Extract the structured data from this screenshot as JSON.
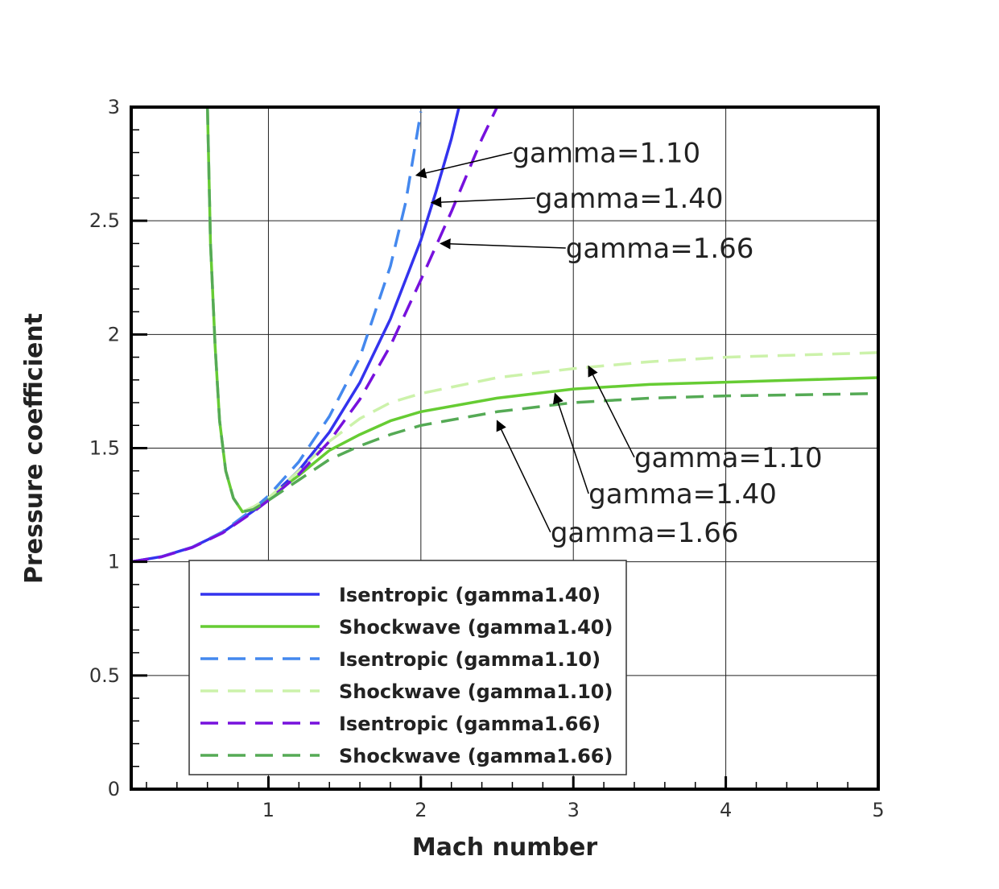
{
  "chart_data": {
    "type": "line",
    "title": "",
    "xlabel": "Mach number",
    "ylabel": "Pressure coefficient",
    "xlim": [
      0.1,
      5
    ],
    "ylim": [
      0,
      3
    ],
    "x_ticks": [
      1,
      2,
      3,
      4,
      5
    ],
    "x_tick_labels": [
      "1",
      "2",
      "3",
      "4",
      "5"
    ],
    "y_ticks": [
      0,
      0.5,
      1,
      1.5,
      2,
      2.5,
      3
    ],
    "y_tick_labels": [
      "0",
      "0.5",
      "1",
      "1.5",
      "2",
      "2.5",
      "3"
    ],
    "grid": true,
    "legend_position": "bottom-left",
    "series": [
      {
        "name": "Isentropic (gamma1.40)",
        "color": "#3333ee",
        "style": "solid",
        "x": [
          0.1,
          0.3,
          0.5,
          0.7,
          0.9,
          1.0,
          1.2,
          1.4,
          1.6,
          1.8,
          2.0,
          2.1,
          2.2,
          2.25
        ],
        "y": [
          1.0,
          1.023,
          1.064,
          1.129,
          1.223,
          1.276,
          1.402,
          1.57,
          1.789,
          2.068,
          2.414,
          2.63,
          2.86,
          3.0
        ]
      },
      {
        "name": "Shockwave (gamma1.40)",
        "color": "#66cc33",
        "style": "solid",
        "x": [
          0.6,
          0.62,
          0.65,
          0.68,
          0.72,
          0.77,
          0.83,
          0.9,
          1.0,
          1.2,
          1.4,
          1.6,
          1.8,
          2.0,
          2.5,
          3.0,
          3.5,
          4.0,
          4.5,
          5.0
        ],
        "y": [
          3.0,
          2.4,
          1.95,
          1.62,
          1.4,
          1.28,
          1.22,
          1.24,
          1.28,
          1.38,
          1.49,
          1.56,
          1.62,
          1.66,
          1.72,
          1.76,
          1.78,
          1.79,
          1.8,
          1.81
        ]
      },
      {
        "name": "Isentropic (gamma1.10)",
        "color": "#4488ee",
        "style": "dashed",
        "x": [
          0.1,
          0.3,
          0.5,
          0.7,
          0.9,
          1.0,
          1.2,
          1.4,
          1.6,
          1.8,
          1.9,
          2.0
        ],
        "y": [
          1.0,
          1.023,
          1.064,
          1.132,
          1.232,
          1.29,
          1.44,
          1.64,
          1.9,
          2.3,
          2.58,
          2.98
        ]
      },
      {
        "name": "Shockwave (gamma1.10)",
        "color": "#ccf2aa",
        "style": "dashed",
        "x": [
          0.6,
          0.62,
          0.65,
          0.68,
          0.72,
          0.77,
          0.83,
          0.9,
          1.0,
          1.2,
          1.4,
          1.6,
          1.8,
          2.0,
          2.5,
          3.0,
          3.5,
          4.0,
          4.5,
          5.0
        ],
        "y": [
          3.0,
          2.4,
          1.95,
          1.62,
          1.4,
          1.28,
          1.22,
          1.24,
          1.28,
          1.4,
          1.53,
          1.63,
          1.7,
          1.74,
          1.81,
          1.85,
          1.88,
          1.9,
          1.91,
          1.92
        ]
      },
      {
        "name": "Isentropic (gamma1.66)",
        "color": "#7711dd",
        "style": "dashed",
        "x": [
          0.1,
          0.3,
          0.5,
          0.7,
          0.9,
          1.0,
          1.2,
          1.4,
          1.6,
          1.8,
          2.0,
          2.2,
          2.4,
          2.5
        ],
        "y": [
          1.0,
          1.022,
          1.063,
          1.127,
          1.219,
          1.27,
          1.385,
          1.53,
          1.715,
          1.95,
          2.24,
          2.54,
          2.86,
          3.0
        ]
      },
      {
        "name": "Shockwave (gamma1.66)",
        "color": "#55aa55",
        "style": "dashed",
        "x": [
          0.6,
          0.62,
          0.65,
          0.68,
          0.72,
          0.77,
          0.83,
          0.9,
          1.0,
          1.2,
          1.4,
          1.6,
          1.8,
          2.0,
          2.5,
          3.0,
          3.5,
          4.0,
          4.5,
          5.0
        ],
        "y": [
          3.0,
          2.4,
          1.95,
          1.62,
          1.4,
          1.28,
          1.22,
          1.23,
          1.27,
          1.36,
          1.45,
          1.51,
          1.56,
          1.6,
          1.66,
          1.7,
          1.72,
          1.73,
          1.735,
          1.74
        ]
      }
    ],
    "annotations": [
      {
        "text": "gamma=1.10",
        "label_x": 2.6,
        "label_y": 2.8,
        "point_x": 1.97,
        "point_y": 2.7
      },
      {
        "text": "gamma=1.40",
        "label_x": 2.75,
        "label_y": 2.6,
        "point_x": 2.07,
        "point_y": 2.58
      },
      {
        "text": "gamma=1.66",
        "label_x": 2.95,
        "label_y": 2.38,
        "point_x": 2.13,
        "point_y": 2.4
      },
      {
        "text": "gamma=1.10",
        "label_x": 3.4,
        "label_y": 1.46,
        "point_x": 3.1,
        "point_y": 1.86
      },
      {
        "text": "gamma=1.40",
        "label_x": 3.1,
        "label_y": 1.3,
        "point_x": 2.88,
        "point_y": 1.74
      },
      {
        "text": "gamma=1.66",
        "label_x": 2.85,
        "label_y": 1.13,
        "point_x": 2.5,
        "point_y": 1.62
      }
    ]
  }
}
